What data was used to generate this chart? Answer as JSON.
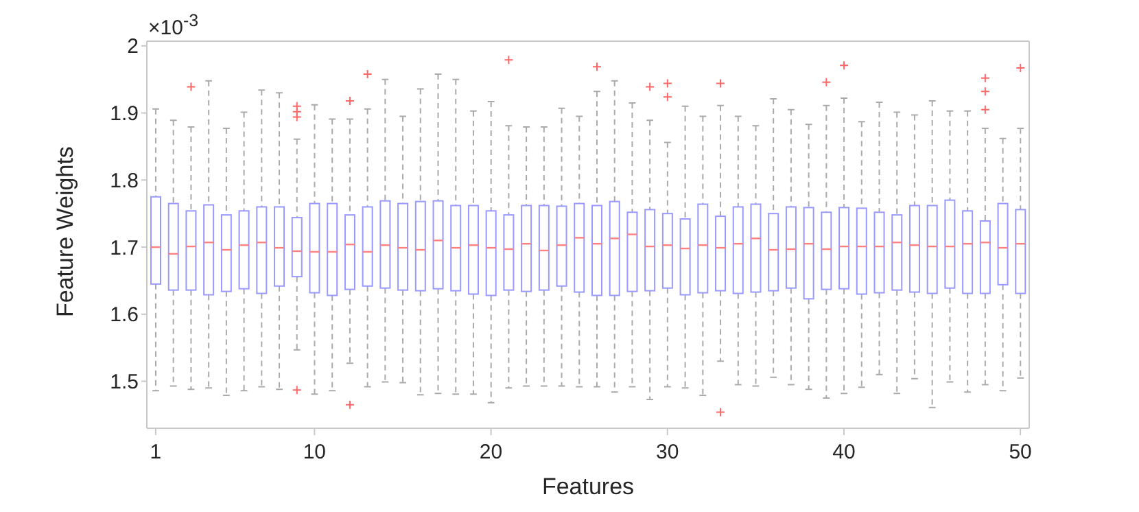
{
  "chart_data": {
    "type": "box",
    "xlabel": "Features",
    "ylabel": "Feature Weights",
    "annotations": [
      "×10$^{-3}$"
    ],
    "categories": [
      "1",
      null,
      null,
      null,
      null,
      null,
      null,
      null,
      null,
      "10",
      null,
      null,
      null,
      null,
      null,
      null,
      null,
      null,
      null,
      "20",
      null,
      null,
      null,
      null,
      null,
      null,
      null,
      null,
      null,
      "30",
      null,
      null,
      null,
      null,
      null,
      null,
      null,
      null,
      null,
      "40",
      null,
      null,
      null,
      null,
      null,
      null,
      null,
      null,
      null,
      "50"
    ],
    "ylim": [
      1.43,
      2.007
    ],
    "yticks": [
      1.5,
      1.6,
      1.7,
      1.8,
      1.9,
      2
    ],
    "series": [
      {
        "color": "#9999ff",
        "boxes": [
          {
            "low": 1.486,
            "q1": 1.645,
            "median": 1.7,
            "q3": 1.775,
            "high": 1.906
          },
          {
            "low": 1.493,
            "q1": 1.636,
            "median": 1.69,
            "q3": 1.765,
            "high": 1.889
          },
          {
            "low": 1.488,
            "q1": 1.636,
            "median": 1.701,
            "q3": 1.754,
            "high": 1.879,
            "outliers": [
              1.939
            ]
          },
          {
            "low": 1.49,
            "q1": 1.629,
            "median": 1.707,
            "q3": 1.763,
            "high": 1.948
          },
          {
            "low": 1.479,
            "q1": 1.634,
            "median": 1.696,
            "q3": 1.748,
            "high": 1.877
          },
          {
            "low": 1.486,
            "q1": 1.638,
            "median": 1.703,
            "q3": 1.754,
            "high": 1.901
          },
          {
            "low": 1.492,
            "q1": 1.631,
            "median": 1.707,
            "q3": 1.76,
            "high": 1.934
          },
          {
            "low": 1.488,
            "q1": 1.642,
            "median": 1.699,
            "q3": 1.76,
            "high": 1.93
          },
          {
            "low": 1.547,
            "q1": 1.656,
            "median": 1.694,
            "q3": 1.744,
            "high": 1.861,
            "outliers": [
              1.91,
              1.902,
              1.894,
              1.487
            ]
          },
          {
            "low": 1.481,
            "q1": 1.632,
            "median": 1.693,
            "q3": 1.765,
            "high": 1.912
          },
          {
            "low": 1.486,
            "q1": 1.628,
            "median": 1.693,
            "q3": 1.765,
            "high": 1.891
          },
          {
            "low": 1.527,
            "q1": 1.637,
            "median": 1.704,
            "q3": 1.748,
            "high": 1.891,
            "outliers": [
              1.918,
              1.465
            ]
          },
          {
            "low": 1.492,
            "q1": 1.642,
            "median": 1.693,
            "q3": 1.76,
            "high": 1.906,
            "outliers": [
              1.958
            ]
          },
          {
            "low": 1.499,
            "q1": 1.639,
            "median": 1.703,
            "q3": 1.769,
            "high": 1.95
          },
          {
            "low": 1.498,
            "q1": 1.636,
            "median": 1.699,
            "q3": 1.765,
            "high": 1.895
          },
          {
            "low": 1.48,
            "q1": 1.635,
            "median": 1.696,
            "q3": 1.768,
            "high": 1.936
          },
          {
            "low": 1.482,
            "q1": 1.638,
            "median": 1.71,
            "q3": 1.769,
            "high": 1.958
          },
          {
            "low": 1.481,
            "q1": 1.635,
            "median": 1.699,
            "q3": 1.762,
            "high": 1.95
          },
          {
            "low": 1.481,
            "q1": 1.63,
            "median": 1.703,
            "q3": 1.762,
            "high": 1.903
          },
          {
            "low": 1.468,
            "q1": 1.628,
            "median": 1.699,
            "q3": 1.754,
            "high": 1.917
          },
          {
            "low": 1.49,
            "q1": 1.636,
            "median": 1.697,
            "q3": 1.748,
            "high": 1.881,
            "outliers": [
              1.979
            ]
          },
          {
            "low": 1.493,
            "q1": 1.634,
            "median": 1.705,
            "q3": 1.762,
            "high": 1.879
          },
          {
            "low": 1.493,
            "q1": 1.636,
            "median": 1.695,
            "q3": 1.762,
            "high": 1.879
          },
          {
            "low": 1.493,
            "q1": 1.642,
            "median": 1.703,
            "q3": 1.761,
            "high": 1.907
          },
          {
            "low": 1.492,
            "q1": 1.633,
            "median": 1.714,
            "q3": 1.765,
            "high": 1.895
          },
          {
            "low": 1.492,
            "q1": 1.628,
            "median": 1.705,
            "q3": 1.762,
            "high": 1.932,
            "outliers": [
              1.969
            ]
          },
          {
            "low": 1.484,
            "q1": 1.628,
            "median": 1.713,
            "q3": 1.768,
            "high": 1.948
          },
          {
            "low": 1.492,
            "q1": 1.634,
            "median": 1.719,
            "q3": 1.752,
            "high": 1.915
          },
          {
            "low": 1.473,
            "q1": 1.635,
            "median": 1.701,
            "q3": 1.756,
            "high": 1.889,
            "outliers": [
              1.939
            ]
          },
          {
            "low": 1.492,
            "q1": 1.639,
            "median": 1.703,
            "q3": 1.75,
            "high": 1.856,
            "outliers": [
              1.944,
              1.924
            ]
          },
          {
            "low": 1.49,
            "q1": 1.629,
            "median": 1.698,
            "q3": 1.742,
            "high": 1.91
          },
          {
            "low": 1.479,
            "q1": 1.632,
            "median": 1.703,
            "q3": 1.764,
            "high": 1.895
          },
          {
            "low": 1.53,
            "q1": 1.635,
            "median": 1.699,
            "q3": 1.746,
            "high": 1.911,
            "outliers": [
              1.944,
              1.454
            ]
          },
          {
            "low": 1.495,
            "q1": 1.631,
            "median": 1.705,
            "q3": 1.76,
            "high": 1.895
          },
          {
            "low": 1.493,
            "q1": 1.633,
            "median": 1.713,
            "q3": 1.764,
            "high": 1.881
          },
          {
            "low": 1.506,
            "q1": 1.635,
            "median": 1.696,
            "q3": 1.75,
            "high": 1.921
          },
          {
            "low": 1.495,
            "q1": 1.639,
            "median": 1.697,
            "q3": 1.76,
            "high": 1.905
          },
          {
            "low": 1.488,
            "q1": 1.623,
            "median": 1.705,
            "q3": 1.759,
            "high": 1.883
          },
          {
            "low": 1.475,
            "q1": 1.637,
            "median": 1.697,
            "q3": 1.752,
            "high": 1.911,
            "outliers": [
              1.946
            ]
          },
          {
            "low": 1.482,
            "q1": 1.638,
            "median": 1.701,
            "q3": 1.759,
            "high": 1.922,
            "outliers": [
              1.971
            ]
          },
          {
            "low": 1.491,
            "q1": 1.63,
            "median": 1.701,
            "q3": 1.758,
            "high": 1.887
          },
          {
            "low": 1.51,
            "q1": 1.632,
            "median": 1.701,
            "q3": 1.752,
            "high": 1.916
          },
          {
            "low": 1.482,
            "q1": 1.636,
            "median": 1.707,
            "q3": 1.748,
            "high": 1.901
          },
          {
            "low": 1.504,
            "q1": 1.633,
            "median": 1.703,
            "q3": 1.762,
            "high": 1.897
          },
          {
            "low": 1.461,
            "q1": 1.631,
            "median": 1.701,
            "q3": 1.762,
            "high": 1.918
          },
          {
            "low": 1.499,
            "q1": 1.639,
            "median": 1.701,
            "q3": 1.77,
            "high": 1.903
          },
          {
            "low": 1.484,
            "q1": 1.631,
            "median": 1.705,
            "q3": 1.754,
            "high": 1.903
          },
          {
            "low": 1.495,
            "q1": 1.631,
            "median": 1.707,
            "q3": 1.739,
            "high": 1.877,
            "outliers": [
              1.952,
              1.932,
              1.905
            ]
          },
          {
            "low": 1.486,
            "q1": 1.644,
            "median": 1.699,
            "q3": 1.765,
            "high": 1.862
          },
          {
            "low": 1.505,
            "q1": 1.631,
            "median": 1.705,
            "q3": 1.756,
            "high": 1.877,
            "outliers": [
              1.967
            ]
          }
        ]
      }
    ]
  }
}
